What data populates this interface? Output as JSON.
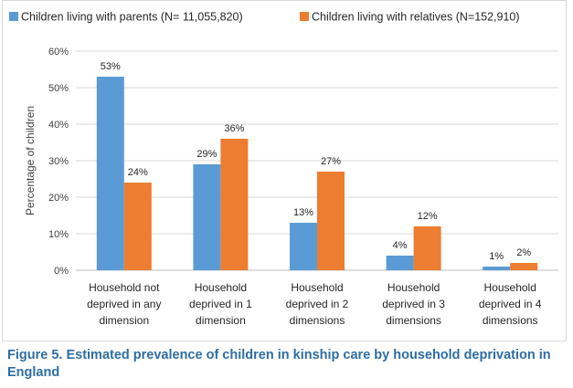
{
  "chart_data": {
    "type": "bar",
    "title": "",
    "xlabel": "",
    "ylabel": "Percentage of children",
    "ylim": [
      0,
      60
    ],
    "yticks": [
      "0%",
      "10%",
      "20%",
      "30%",
      "40%",
      "50%",
      "60%"
    ],
    "ytick_values": [
      0,
      10,
      20,
      30,
      40,
      50,
      60
    ],
    "grid": true,
    "legend": "top",
    "categories": [
      [
        "Household not",
        "deprived in any",
        "dimension"
      ],
      [
        "Household",
        "deprived in 1",
        "dimension"
      ],
      [
        "Household",
        "deprived in 2",
        "dimensions"
      ],
      [
        "Household",
        "deprived in 3",
        "dimensions"
      ],
      [
        "Household",
        "deprived in 4",
        "dimensions"
      ]
    ],
    "series": [
      {
        "name": "Children living with parents (N= 11,055,820)",
        "color": "#5b9bd5",
        "values": [
          53,
          29,
          13,
          4,
          1
        ],
        "labels": [
          "53%",
          "29%",
          "13%",
          "4%",
          "1%"
        ]
      },
      {
        "name": "Children living with relatives (N=152,910)",
        "color": "#ed7d31",
        "values": [
          24,
          36,
          27,
          12,
          2
        ],
        "labels": [
          "24%",
          "36%",
          "27%",
          "12%",
          "2%"
        ]
      }
    ]
  },
  "caption": "Figure 5. Estimated prevalence of children in kinship care by household deprivation in England"
}
